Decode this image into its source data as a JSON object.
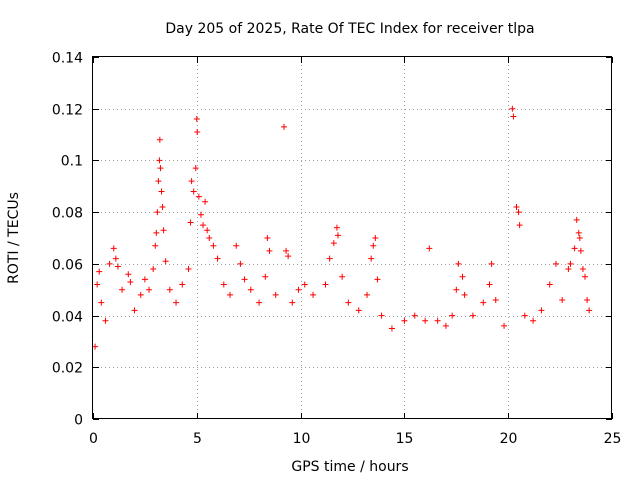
{
  "chart_data": {
    "type": "scatter",
    "title": "Day 205 of 2025, Rate Of TEC Index for receiver tlpa",
    "xlabel": "GPS time / hours",
    "ylabel": "ROTI / TECUs",
    "xlim": [
      0,
      25
    ],
    "ylim": [
      0,
      0.14
    ],
    "x_ticks": [
      0,
      5,
      10,
      15,
      20,
      25
    ],
    "x_tick_labels": [
      "0",
      "5",
      "10",
      "15",
      "20",
      "25"
    ],
    "y_ticks": [
      0,
      0.02,
      0.04,
      0.06,
      0.08,
      0.1,
      0.12,
      0.14
    ],
    "y_tick_labels": [
      "0",
      "0.02",
      "0.04",
      "0.06",
      "0.08",
      "0.1",
      "0.12",
      "0.14"
    ],
    "grid": true,
    "marker": "+",
    "series_color": "#ff0000",
    "series": [
      {
        "name": "ROTI",
        "points": [
          [
            0.1,
            0.028
          ],
          [
            0.2,
            0.052
          ],
          [
            0.3,
            0.057
          ],
          [
            0.4,
            0.045
          ],
          [
            0.6,
            0.038
          ],
          [
            0.8,
            0.06
          ],
          [
            1.0,
            0.066
          ],
          [
            1.1,
            0.062
          ],
          [
            1.2,
            0.059
          ],
          [
            1.4,
            0.05
          ],
          [
            1.7,
            0.056
          ],
          [
            1.8,
            0.053
          ],
          [
            2.0,
            0.042
          ],
          [
            2.3,
            0.048
          ],
          [
            2.5,
            0.054
          ],
          [
            2.7,
            0.05
          ],
          [
            2.9,
            0.058
          ],
          [
            3.0,
            0.067
          ],
          [
            3.05,
            0.072
          ],
          [
            3.1,
            0.08
          ],
          [
            3.15,
            0.092
          ],
          [
            3.2,
            0.1
          ],
          [
            3.22,
            0.108
          ],
          [
            3.25,
            0.097
          ],
          [
            3.3,
            0.088
          ],
          [
            3.35,
            0.082
          ],
          [
            3.4,
            0.073
          ],
          [
            3.5,
            0.061
          ],
          [
            3.7,
            0.05
          ],
          [
            4.0,
            0.045
          ],
          [
            4.3,
            0.052
          ],
          [
            4.6,
            0.058
          ],
          [
            4.7,
            0.076
          ],
          [
            4.75,
            0.092
          ],
          [
            4.85,
            0.088
          ],
          [
            4.95,
            0.097
          ],
          [
            5.0,
            0.116
          ],
          [
            5.02,
            0.111
          ],
          [
            5.1,
            0.086
          ],
          [
            5.2,
            0.079
          ],
          [
            5.3,
            0.075
          ],
          [
            5.4,
            0.084
          ],
          [
            5.5,
            0.073
          ],
          [
            5.6,
            0.07
          ],
          [
            5.8,
            0.067
          ],
          [
            6.0,
            0.062
          ],
          [
            6.3,
            0.052
          ],
          [
            6.6,
            0.048
          ],
          [
            6.9,
            0.067
          ],
          [
            7.1,
            0.06
          ],
          [
            7.3,
            0.054
          ],
          [
            7.6,
            0.05
          ],
          [
            8.0,
            0.045
          ],
          [
            8.3,
            0.055
          ],
          [
            8.4,
            0.07
          ],
          [
            8.5,
            0.065
          ],
          [
            8.8,
            0.048
          ],
          [
            9.2,
            0.113
          ],
          [
            9.3,
            0.065
          ],
          [
            9.4,
            0.063
          ],
          [
            9.6,
            0.045
          ],
          [
            9.9,
            0.05
          ],
          [
            10.2,
            0.052
          ],
          [
            10.6,
            0.048
          ],
          [
            11.2,
            0.052
          ],
          [
            11.4,
            0.062
          ],
          [
            11.6,
            0.068
          ],
          [
            11.75,
            0.074
          ],
          [
            11.8,
            0.071
          ],
          [
            12.0,
            0.055
          ],
          [
            12.3,
            0.045
          ],
          [
            12.8,
            0.042
          ],
          [
            13.2,
            0.048
          ],
          [
            13.4,
            0.062
          ],
          [
            13.5,
            0.067
          ],
          [
            13.6,
            0.07
          ],
          [
            13.7,
            0.054
          ],
          [
            13.9,
            0.04
          ],
          [
            14.4,
            0.035
          ],
          [
            15.0,
            0.038
          ],
          [
            15.5,
            0.04
          ],
          [
            16.0,
            0.038
          ],
          [
            16.2,
            0.066
          ],
          [
            16.6,
            0.038
          ],
          [
            17.0,
            0.036
          ],
          [
            17.3,
            0.04
          ],
          [
            17.5,
            0.05
          ],
          [
            17.6,
            0.06
          ],
          [
            17.8,
            0.055
          ],
          [
            17.9,
            0.048
          ],
          [
            18.3,
            0.04
          ],
          [
            18.8,
            0.045
          ],
          [
            19.1,
            0.052
          ],
          [
            19.2,
            0.06
          ],
          [
            19.4,
            0.046
          ],
          [
            19.8,
            0.036
          ],
          [
            20.2,
            0.12
          ],
          [
            20.25,
            0.117
          ],
          [
            20.4,
            0.082
          ],
          [
            20.5,
            0.08
          ],
          [
            20.55,
            0.075
          ],
          [
            20.8,
            0.04
          ],
          [
            21.2,
            0.038
          ],
          [
            21.6,
            0.042
          ],
          [
            22.0,
            0.052
          ],
          [
            22.3,
            0.06
          ],
          [
            22.6,
            0.046
          ],
          [
            22.9,
            0.058
          ],
          [
            23.0,
            0.06
          ],
          [
            23.2,
            0.066
          ],
          [
            23.3,
            0.077
          ],
          [
            23.4,
            0.072
          ],
          [
            23.45,
            0.07
          ],
          [
            23.5,
            0.065
          ],
          [
            23.6,
            0.058
          ],
          [
            23.7,
            0.055
          ],
          [
            23.8,
            0.046
          ],
          [
            23.9,
            0.042
          ]
        ]
      }
    ]
  }
}
